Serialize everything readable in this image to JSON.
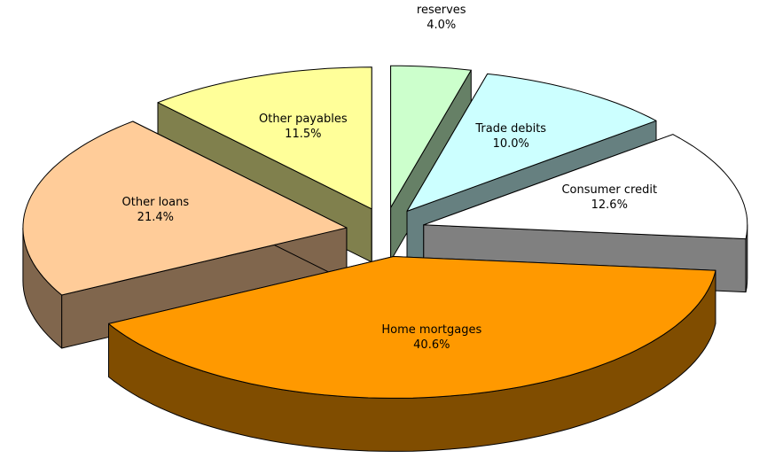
{
  "chart_data": {
    "type": "pie",
    "categories": [
      "Insurance technical reserves",
      "Trade debits",
      "Consumer credit",
      "Home mortgages",
      "Other loans",
      "Other payables"
    ],
    "values": [
      4.0,
      10.0,
      12.6,
      40.6,
      21.4,
      11.5
    ],
    "value_labels": [
      "4.0%",
      "10.0%",
      "12.6%",
      "40.6%",
      "21.4%",
      "11.5%"
    ],
    "colors": [
      "#ccffcc",
      "#ccffff",
      "#ffffff",
      "#ff9900",
      "#ffcc99",
      "#ffff99"
    ]
  }
}
